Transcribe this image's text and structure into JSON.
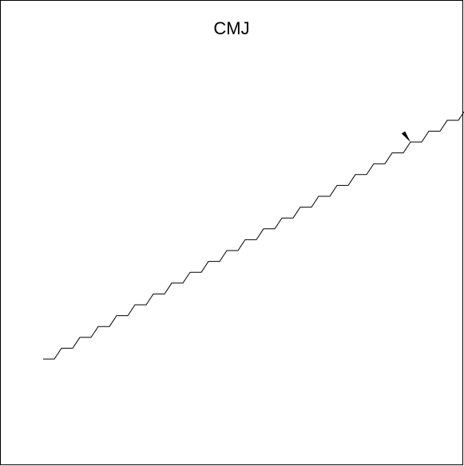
{
  "title": "CMJ",
  "structure": {
    "description_type": "skeletal-formula",
    "chain_style": "zigzag",
    "stereo_methyl_wedge": true,
    "line_color": "#000000",
    "wedge_color": "#000000"
  }
}
